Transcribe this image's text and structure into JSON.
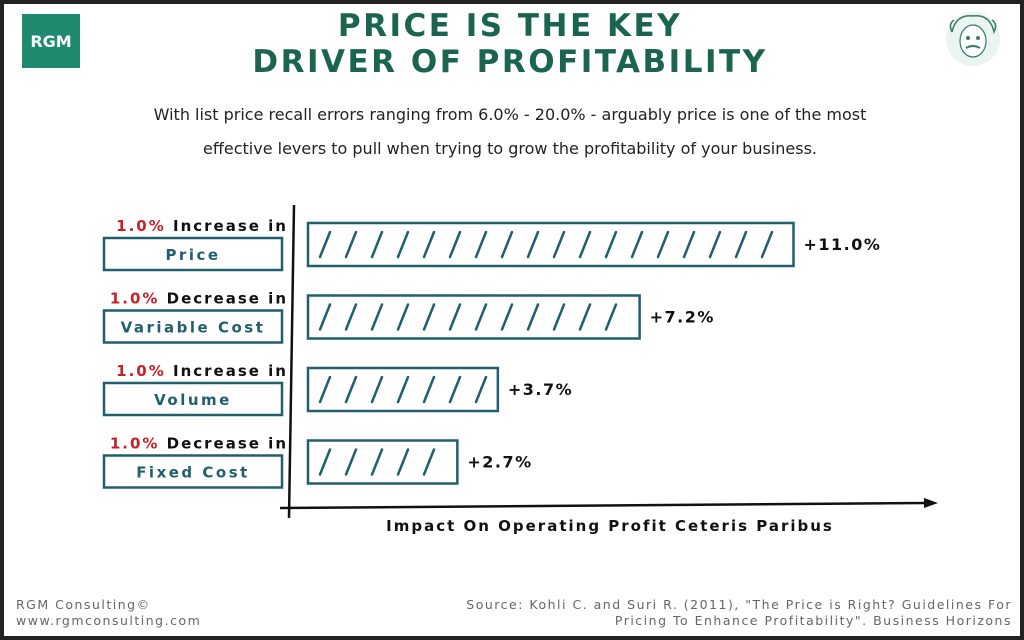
{
  "header": {
    "logo_text": "RGM",
    "title_line1": "PRICE IS THE KEY",
    "title_line2": "DRIVER OF PROFITABILITY",
    "subtitle_line1": "With list price recall errors ranging from 6.0% - 20.0% - arguably price is one of the most",
    "subtitle_line2": "effective levers to pull when trying to grow the profitability of your business.",
    "avatar_icon": "einstein-sketch-icon"
  },
  "chart_data": {
    "type": "bar",
    "orientation": "horizontal",
    "categories": [
      {
        "change": "1.0%",
        "direction": "Increase in",
        "driver": "Price"
      },
      {
        "change": "1.0%",
        "direction": "Decrease in",
        "driver": "Variable Cost"
      },
      {
        "change": "1.0%",
        "direction": "Increase in",
        "driver": "Volume"
      },
      {
        "change": "1.0%",
        "direction": "Decrease in",
        "driver": "Fixed Cost"
      }
    ],
    "values": [
      11.0,
      7.2,
      3.7,
      2.7
    ],
    "data_labels": [
      "+11.0%",
      "+7.2%",
      "+3.7%",
      "+2.7%"
    ],
    "xlabel": "Impact On Operating Profit Ceteris Paribus",
    "grid": false,
    "colors": {
      "bar": "#1f5f6e",
      "accent": "#c8202a",
      "title": "#1a6450"
    }
  },
  "footer": {
    "company": "RGM Consulting©",
    "website": "www.rgmconsulting.com",
    "source_line1": "Source: Kohli C. and Suri R. (2011), \"The Price is Right? Guidelines For",
    "source_line2": "Pricing To Enhance Profitability\".  Business Horizons"
  }
}
